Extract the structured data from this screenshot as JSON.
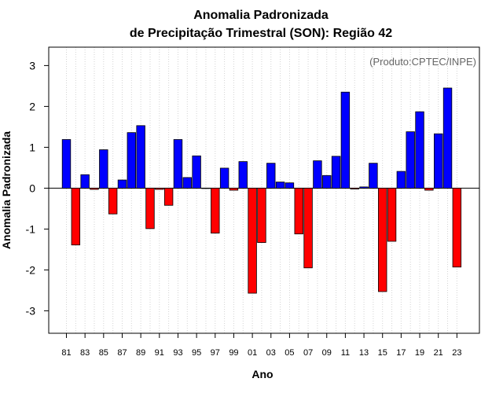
{
  "chart_data": {
    "type": "bar",
    "title_line1": "Anomalia Padronizada",
    "title_line2": "de Precipitação Trimestral (SON): Região 42",
    "xlabel": "Ano",
    "ylabel": "Anomalia Padronizada",
    "annotation": "(Produto:CPTEC/INPE)",
    "ylim": [
      -3.55,
      3.45
    ],
    "yticks": [
      -3,
      -2,
      -1,
      0,
      1,
      2,
      3
    ],
    "grid": "vertical dotted",
    "categories": [
      "81",
      "82",
      "83",
      "84",
      "85",
      "86",
      "87",
      "88",
      "89",
      "90",
      "91",
      "92",
      "93",
      "94",
      "95",
      "96",
      "97",
      "98",
      "99",
      "00",
      "01",
      "02",
      "03",
      "04",
      "05",
      "06",
      "07",
      "08",
      "09",
      "10",
      "11",
      "12",
      "13",
      "14",
      "15",
      "16",
      "17",
      "18",
      "19",
      "20",
      "21",
      "22",
      "23"
    ],
    "tick_labels": [
      "81",
      "83",
      "85",
      "87",
      "89",
      "91",
      "93",
      "95",
      "97",
      "99",
      "01",
      "03",
      "05",
      "07",
      "09",
      "11",
      "13",
      "15",
      "17",
      "19",
      "21",
      "23"
    ],
    "values": [
      1.19,
      -1.39,
      0.33,
      -0.03,
      0.94,
      -0.63,
      0.2,
      1.36,
      1.53,
      -0.99,
      -0.03,
      -0.42,
      1.19,
      0.26,
      0.79,
      0.0,
      -1.1,
      0.49,
      -0.05,
      0.65,
      -2.57,
      -1.33,
      0.61,
      0.15,
      0.13,
      -1.12,
      -1.95,
      0.67,
      0.31,
      0.78,
      2.35,
      -0.02,
      0.03,
      0.61,
      -2.53,
      -1.3,
      0.41,
      1.38,
      1.87,
      -0.05,
      1.33,
      2.45,
      -1.93
    ],
    "colors": {
      "positive": "#0000ff",
      "negative": "#ff0000",
      "grid": "#d3d3d3"
    }
  }
}
